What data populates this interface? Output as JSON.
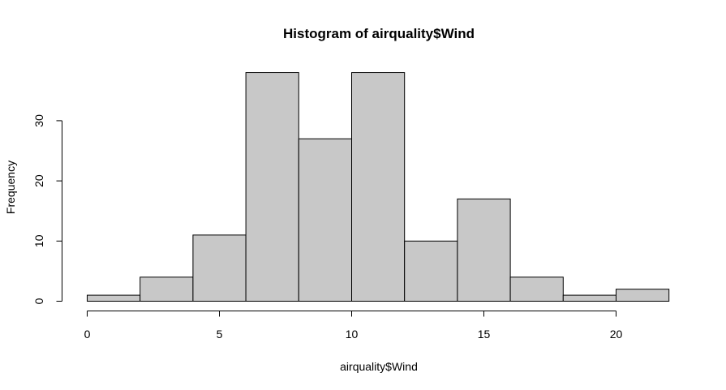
{
  "chart_data": {
    "type": "bar",
    "title": "Histogram of airquality$Wind",
    "xlabel": "airquality$Wind",
    "ylabel": "Frequency",
    "bins": [
      {
        "start": 0,
        "end": 2,
        "count": 1
      },
      {
        "start": 2,
        "end": 4,
        "count": 4
      },
      {
        "start": 4,
        "end": 6,
        "count": 11
      },
      {
        "start": 6,
        "end": 8,
        "count": 38
      },
      {
        "start": 8,
        "end": 10,
        "count": 27
      },
      {
        "start": 10,
        "end": 12,
        "count": 38
      },
      {
        "start": 12,
        "end": 14,
        "count": 10
      },
      {
        "start": 14,
        "end": 16,
        "count": 17
      },
      {
        "start": 16,
        "end": 18,
        "count": 4
      },
      {
        "start": 18,
        "end": 20,
        "count": 1
      },
      {
        "start": 20,
        "end": 22,
        "count": 2
      }
    ],
    "xticks": [
      0,
      5,
      10,
      15,
      20
    ],
    "yticks": [
      0,
      10,
      20,
      30
    ],
    "xlim": [
      0,
      22
    ],
    "ylim": [
      0,
      38
    ],
    "bar_color": "#c8c8c8",
    "border_color": "#000000",
    "grid": false,
    "legend": "none"
  }
}
